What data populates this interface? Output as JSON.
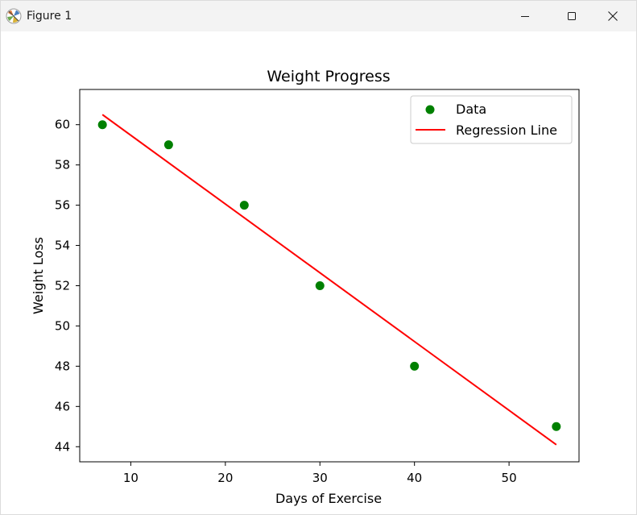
{
  "window": {
    "title": "Figure 1",
    "icons": {
      "app": "matplotlib-figure-icon",
      "minimize": "minimize-icon",
      "maximize": "maximize-icon",
      "close": "close-icon"
    }
  },
  "chart_data": {
    "type": "scatter",
    "title": "Weight Progress",
    "xlabel": "Days of Exercise",
    "ylabel": "Weight Loss",
    "xlim": [
      4.6,
      57.4
    ],
    "ylim": [
      43.25,
      61.75
    ],
    "xticks": [
      10,
      20,
      30,
      40,
      50
    ],
    "yticks": [
      44,
      46,
      48,
      50,
      52,
      54,
      56,
      58,
      60
    ],
    "grid": false,
    "legend_placement": "upper-right",
    "series": [
      {
        "name": "Data",
        "kind": "scatter",
        "color": "#008000",
        "x": [
          7,
          14,
          22,
          30,
          40,
          55
        ],
        "y": [
          60,
          59,
          56,
          52,
          48,
          45
        ]
      },
      {
        "name": "Regression Line",
        "kind": "line",
        "color": "#ff0000",
        "x": [
          7,
          55
        ],
        "y": [
          60.5,
          44.1
        ]
      }
    ]
  }
}
